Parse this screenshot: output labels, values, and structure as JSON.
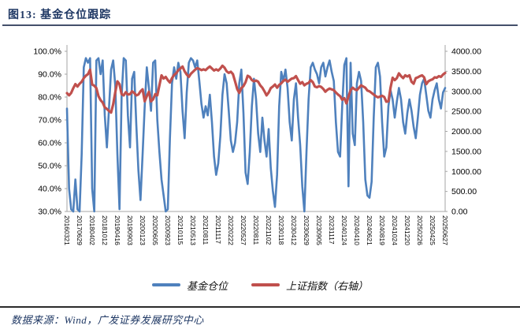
{
  "figure": {
    "title": "图13:  基金仓位跟踪"
  },
  "source_note": "数据来源：Wind，广发证券发展研究中心",
  "colors": {
    "title_navy": "#1f3864",
    "fund_blue": "#4f81bd",
    "index_red": "#c0504d",
    "axis_gray": "#a6a6a6",
    "tick_text": "#000000"
  },
  "legend": {
    "items": [
      {
        "label": "基金仓位",
        "color": "#4f81bd"
      },
      {
        "label": "上证指数（右轴）",
        "color": "#c0504d"
      }
    ]
  },
  "chart_data": {
    "type": "line",
    "title": "基金仓位跟踪",
    "grid": false,
    "legend_position": "bottom",
    "left_axis": {
      "min": 30,
      "max": 100,
      "tick_labels": [
        "100.0%",
        "90.0%",
        "80.0%",
        "70.0%",
        "60.0%",
        "50.0%",
        "40.0%",
        "30.0%"
      ]
    },
    "right_axis": {
      "min": 0,
      "max": 4000,
      "tick_labels": [
        "4000.00",
        "3500.00",
        "3000.00",
        "2500.00",
        "2000.00",
        "1500.00",
        "1000.00",
        "500.00",
        "0.00"
      ]
    },
    "x_labels": [
      "20160321",
      "20170629",
      "20180402",
      "20181012",
      "20190416",
      "20190903",
      "20200123",
      "20200605",
      "20200923",
      "20210115",
      "20210513",
      "20210811",
      "20211117",
      "20220222",
      "20220527",
      "20220811",
      "20221102",
      "20230118",
      "20230412",
      "20230629",
      "20230905",
      "20231117",
      "20240124",
      "20240410",
      "20240621",
      "20240819",
      "20241024",
      "20241220",
      "20250226",
      "20250425",
      "20250627"
    ],
    "series": [
      {
        "name": "基金仓位",
        "axis": "left",
        "unit": "%",
        "color": "#4f81bd",
        "values": [
          75,
          40,
          31,
          30,
          44,
          31,
          30,
          55,
          93,
          97,
          95,
          97,
          40,
          30,
          96,
          97,
          90,
          96,
          72,
          58,
          75,
          92,
          96,
          85,
          55,
          31,
          80,
          97,
          96,
          72,
          58,
          88,
          91,
          68,
          48,
          35,
          55,
          76,
          93,
          84,
          74,
          95,
          96,
          70,
          56,
          44,
          37,
          30,
          31,
          62,
          86,
          93,
          88,
          95,
          91,
          74,
          62,
          82,
          95,
          97,
          96,
          93,
          96,
          87,
          77,
          71,
          76,
          72,
          81,
          69,
          54,
          46,
          51,
          63,
          81,
          90,
          86,
          74,
          61,
          56,
          60,
          69,
          86,
          92,
          73,
          47,
          42,
          56,
          76,
          88,
          79,
          64,
          56,
          71,
          61,
          54,
          66,
          49,
          39,
          32,
          46,
          76,
          91,
          87,
          92,
          84,
          69,
          61,
          79,
          86,
          71,
          59,
          41,
          30,
          56,
          79,
          93,
          95,
          92,
          90,
          86,
          93,
          95,
          89,
          93,
          96,
          91,
          87,
          69,
          56,
          54,
          76,
          94,
          97,
          41,
          95,
          64,
          59,
          86,
          91,
          87,
          69,
          44,
          37,
          36,
          43,
          71,
          93,
          95,
          89,
          69,
          54,
          58,
          76,
          83,
          79,
          71,
          78,
          84,
          79,
          69,
          64,
          73,
          79,
          74,
          67,
          62,
          71,
          81,
          86,
          88,
          81,
          74,
          71,
          79,
          83,
          86,
          79,
          75,
          82,
          84
        ]
      },
      {
        "name": "上证指数（右轴）",
        "axis": "right",
        "unit": "index points",
        "color": "#c0504d",
        "values": [
          2955,
          2900,
          2960,
          3080,
          3180,
          3120,
          3190,
          3240,
          3330,
          3390,
          3430,
          3540,
          3170,
          3140,
          3080,
          2880,
          2780,
          2720,
          2600,
          2560,
          2510,
          2470,
          2680,
          2980,
          3250,
          3180,
          2930,
          2900,
          2980,
          2920,
          2930,
          3000,
          2960,
          2900,
          2920,
          3000,
          3050,
          2750,
          2880,
          2990,
          2750,
          2800,
          2930,
          2900,
          3150,
          3400,
          3320,
          3360,
          3280,
          3220,
          3330,
          3410,
          3450,
          3530,
          3570,
          3620,
          3500,
          3420,
          3360,
          3440,
          3490,
          3540,
          3580,
          3560,
          3530,
          3550,
          3530,
          3580,
          3620,
          3570,
          3520,
          3550,
          3520,
          3570,
          3640,
          3590,
          3500,
          3460,
          3490,
          3430,
          3250,
          3060,
          2960,
          3080,
          3130,
          3230,
          3390,
          3360,
          3280,
          3250,
          3270,
          3240,
          3150,
          3090,
          3000,
          2900,
          2970,
          3080,
          3120,
          3170,
          3090,
          3160,
          3200,
          3260,
          3290,
          3240,
          3280,
          3320,
          3330,
          3380,
          3280,
          3190,
          3230,
          3150,
          3190,
          3210,
          3280,
          3230,
          3120,
          3100,
          3130,
          3110,
          3060,
          2990,
          3040,
          3070,
          3050,
          3030,
          2970,
          2920,
          2880,
          2790,
          2830,
          2700,
          2870,
          3030,
          3090,
          3050,
          3030,
          3090,
          3150,
          3120,
          3090,
          3020,
          3000,
          2960,
          2920,
          2880,
          2850,
          2870,
          2890,
          2860,
          2740,
          2750,
          3090,
          3340,
          3280,
          3330,
          3450,
          3380,
          3330,
          3400,
          3370,
          3400,
          3240,
          3190,
          3330,
          3350,
          3380,
          3400,
          3350,
          3180,
          3250,
          3280,
          3300,
          3350,
          3340,
          3380,
          3360,
          3420,
          3460
        ]
      }
    ]
  }
}
